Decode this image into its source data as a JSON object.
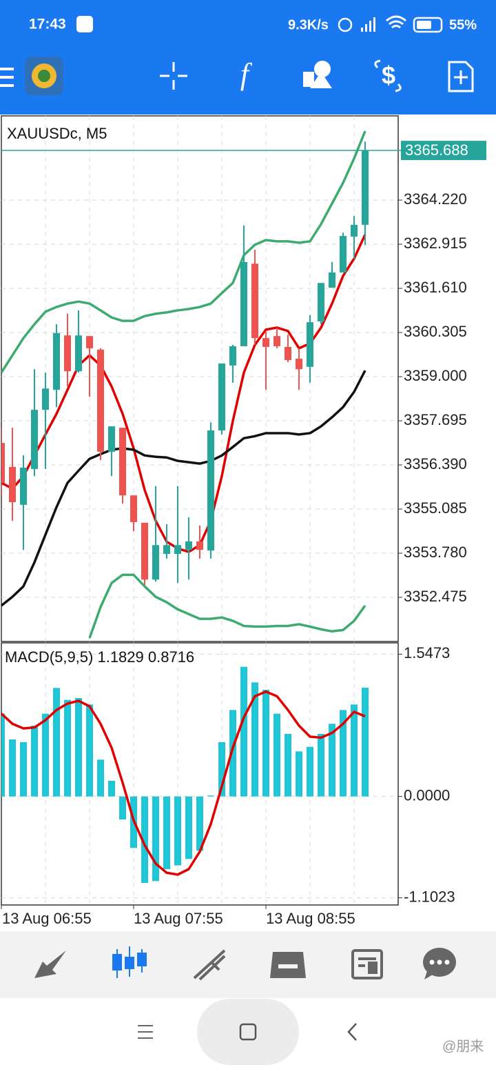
{
  "status_bar": {
    "time": "17:43",
    "speed": "9.3K/s",
    "battery": "55%"
  },
  "chart_data": [
    {
      "type": "candlestick",
      "title": "XAUUSDc, M5",
      "open": [
        3357.04,
        3356.33,
        3355.21,
        3356.27,
        3358.02,
        3358.61,
        3360.22,
        3359.16,
        3360.2,
        3359.8,
        3356.78,
        3357.49,
        3355.49,
        3354.68,
        3353.0,
        3353.76,
        3353.76,
        3353.88,
        3354.13,
        3353.86,
        3357.41,
        3359.33,
        3359.9,
        3362.34,
        3360.14,
        3360.2,
        3359.88,
        3359.53,
        3359.29,
        3360.63,
        3361.63,
        3362.08,
        3363.14,
        3363.49
      ],
      "high": [
        3357.49,
        3357.49,
        3356.68,
        3359.22,
        3359.12,
        3360.55,
        3360.86,
        3360.96,
        3360.2,
        3359.84,
        3357.53,
        3357.49,
        3355.49,
        3354.68,
        3355.76,
        3354.64,
        3355.76,
        3354.84,
        3354.6,
        3357.65,
        3359.39,
        3359.94,
        3363.47,
        3362.75,
        3360.35,
        3360.45,
        3360.24,
        3359.84,
        3360.82,
        3361.77,
        3362.39,
        3363.26,
        3363.75,
        3365.95
      ],
      "low": [
        3355.45,
        3354.74,
        3353.88,
        3356.06,
        3356.27,
        3358.1,
        3358.71,
        3359.12,
        3358.41,
        3356.53,
        3356.06,
        3355.25,
        3354.43,
        3352.84,
        3352.94,
        3353.62,
        3352.9,
        3353.0,
        3353.62,
        3353.62,
        3357.29,
        3358.82,
        3359.9,
        3359.94,
        3358.61,
        3359.84,
        3359.43,
        3358.61,
        3358.82,
        3360.55,
        3361.63,
        3362.08,
        3362.49,
        3362.89
      ],
      "close": [
        3355.86,
        3355.29,
        3356.31,
        3358.02,
        3358.65,
        3360.29,
        3359.16,
        3360.22,
        3359.84,
        3356.78,
        3357.53,
        3355.49,
        3354.7,
        3353.0,
        3354.02,
        3354.02,
        3354.02,
        3354.13,
        3353.88,
        3357.41,
        3359.39,
        3359.9,
        3362.39,
        3360.14,
        3359.88,
        3359.9,
        3359.49,
        3359.22,
        3360.61,
        3361.77,
        3362.08,
        3363.16,
        3363.49,
        3365.69
      ],
      "up_color": "#26a69a",
      "down_color": "#ef5350",
      "series": [
        {
          "color": "#e00000",
          "values": [
            3355.86,
            3355.69,
            3356.06,
            3356.67,
            3357.29,
            3357.9,
            3358.61,
            3359.33,
            3359.63,
            3359.33,
            3358.71,
            3357.9,
            3356.88,
            3355.65,
            3354.74,
            3354.12,
            3353.92,
            3353.82,
            3354.02,
            3354.74,
            3356.06,
            3357.69,
            3359.12,
            3359.94,
            3360.39,
            3360.45,
            3360.35,
            3359.84,
            3359.98,
            3360.45,
            3361.16,
            3361.98,
            3362.49,
            3363.2
          ]
        },
        {
          "color": "#111111",
          "values": [
            3352.23,
            3352.49,
            3352.8,
            3353.51,
            3354.33,
            3355.14,
            3355.86,
            3356.22,
            3356.57,
            3356.71,
            3356.84,
            3356.88,
            3356.84,
            3356.67,
            3356.63,
            3356.61,
            3356.51,
            3356.47,
            3356.43,
            3356.51,
            3356.67,
            3356.92,
            3357.18,
            3357.24,
            3357.33,
            3357.33,
            3357.33,
            3357.29,
            3357.33,
            3357.53,
            3357.8,
            3358.1,
            3358.55,
            3359.18
          ]
        },
        {
          "color": "#3dab6f",
          "values": [
            3359.12,
            3359.63,
            3360.14,
            3360.55,
            3360.92,
            3361.06,
            3361.16,
            3361.22,
            3361.16,
            3360.96,
            3360.75,
            3360.65,
            3360.65,
            3360.79,
            3360.86,
            3360.9,
            3360.96,
            3361.0,
            3361.06,
            3361.16,
            3361.47,
            3361.77,
            3362.59,
            3362.9,
            3363.04,
            3363.0,
            3363.0,
            3362.96,
            3363.0,
            3363.51,
            3364.12,
            3364.73,
            3365.45,
            3366.26
          ]
        },
        {
          "color": "#3dab6f",
          "values": [
            null,
            null,
            null,
            null,
            null,
            null,
            null,
            null,
            3351.27,
            3352.19,
            3352.9,
            3353.14,
            3353.14,
            3352.8,
            3352.49,
            3352.33,
            3352.12,
            3351.98,
            3351.84,
            3351.84,
            3351.88,
            3351.78,
            3351.63,
            3351.61,
            3351.61,
            3351.63,
            3351.63,
            3351.68,
            3351.61,
            3351.53,
            3351.47,
            3351.51,
            3351.78,
            3352.23
          ]
        }
      ],
      "last_price": 3365.688,
      "last_price_color": "#26a69a",
      "ylim": [
        3351.17,
        3366.71
      ],
      "yticks": [
        3352.475,
        {
          "value": 3353.78,
          "label": "3353.780"
        },
        3355.085,
        {
          "value": 3356.39,
          "label": "3356.390"
        },
        3357.695,
        {
          "value": 3359,
          "label": "3359.000"
        },
        3360.305,
        {
          "value": 3361.61,
          "label": "3361.610"
        },
        3362.915,
        {
          "value": 3364.22,
          "label": "3364.220"
        }
      ],
      "grid": true
    },
    {
      "type": "bar",
      "title": "MACD(5,9,5) 1.1829 0.8716",
      "categories": [
        "13 Aug 06:55",
        null,
        null,
        null,
        null,
        null,
        null,
        null,
        null,
        null,
        null,
        null,
        "13 Aug 07:55",
        null,
        null,
        null,
        null,
        null,
        null,
        null,
        null,
        null,
        null,
        null,
        "13 Aug 08:55",
        null,
        null,
        null,
        null,
        null,
        null,
        null,
        null,
        null
      ],
      "series": [
        {
          "type": "bar",
          "color": "#1fc6d6",
          "values": [
            0.9,
            0.62,
            0.59,
            0.77,
            0.9,
            1.18,
            1.05,
            1.07,
            1.0,
            0.4,
            0.17,
            -0.25,
            -0.56,
            -0.94,
            -0.92,
            -0.79,
            -0.75,
            -0.68,
            -0.59,
            0.01,
            0.59,
            0.94,
            1.41,
            1.24,
            1.16,
            0.9,
            0.68,
            0.49,
            0.54,
            0.68,
            0.79,
            0.94,
            1.0,
            1.1829
          ]
        },
        {
          "type": "line",
          "color": "#e00000",
          "values": [
            0.9,
            0.79,
            0.74,
            0.75,
            0.83,
            0.94,
            1.01,
            1.04,
            0.98,
            0.79,
            0.53,
            0.15,
            -0.26,
            -0.53,
            -0.73,
            -0.83,
            -0.85,
            -0.79,
            -0.6,
            -0.3,
            0.11,
            0.53,
            0.86,
            1.09,
            1.14,
            1.09,
            0.94,
            0.77,
            0.65,
            0.64,
            0.69,
            0.79,
            0.92,
            0.8716
          ]
        }
      ],
      "ylim": [
        -1.18,
        1.67
      ],
      "yticks": [
        1.5473,
        {
          "value": 0,
          "label": "0.0000"
        },
        -1.1023
      ],
      "grid": true
    }
  ],
  "watermark": "@朋来"
}
